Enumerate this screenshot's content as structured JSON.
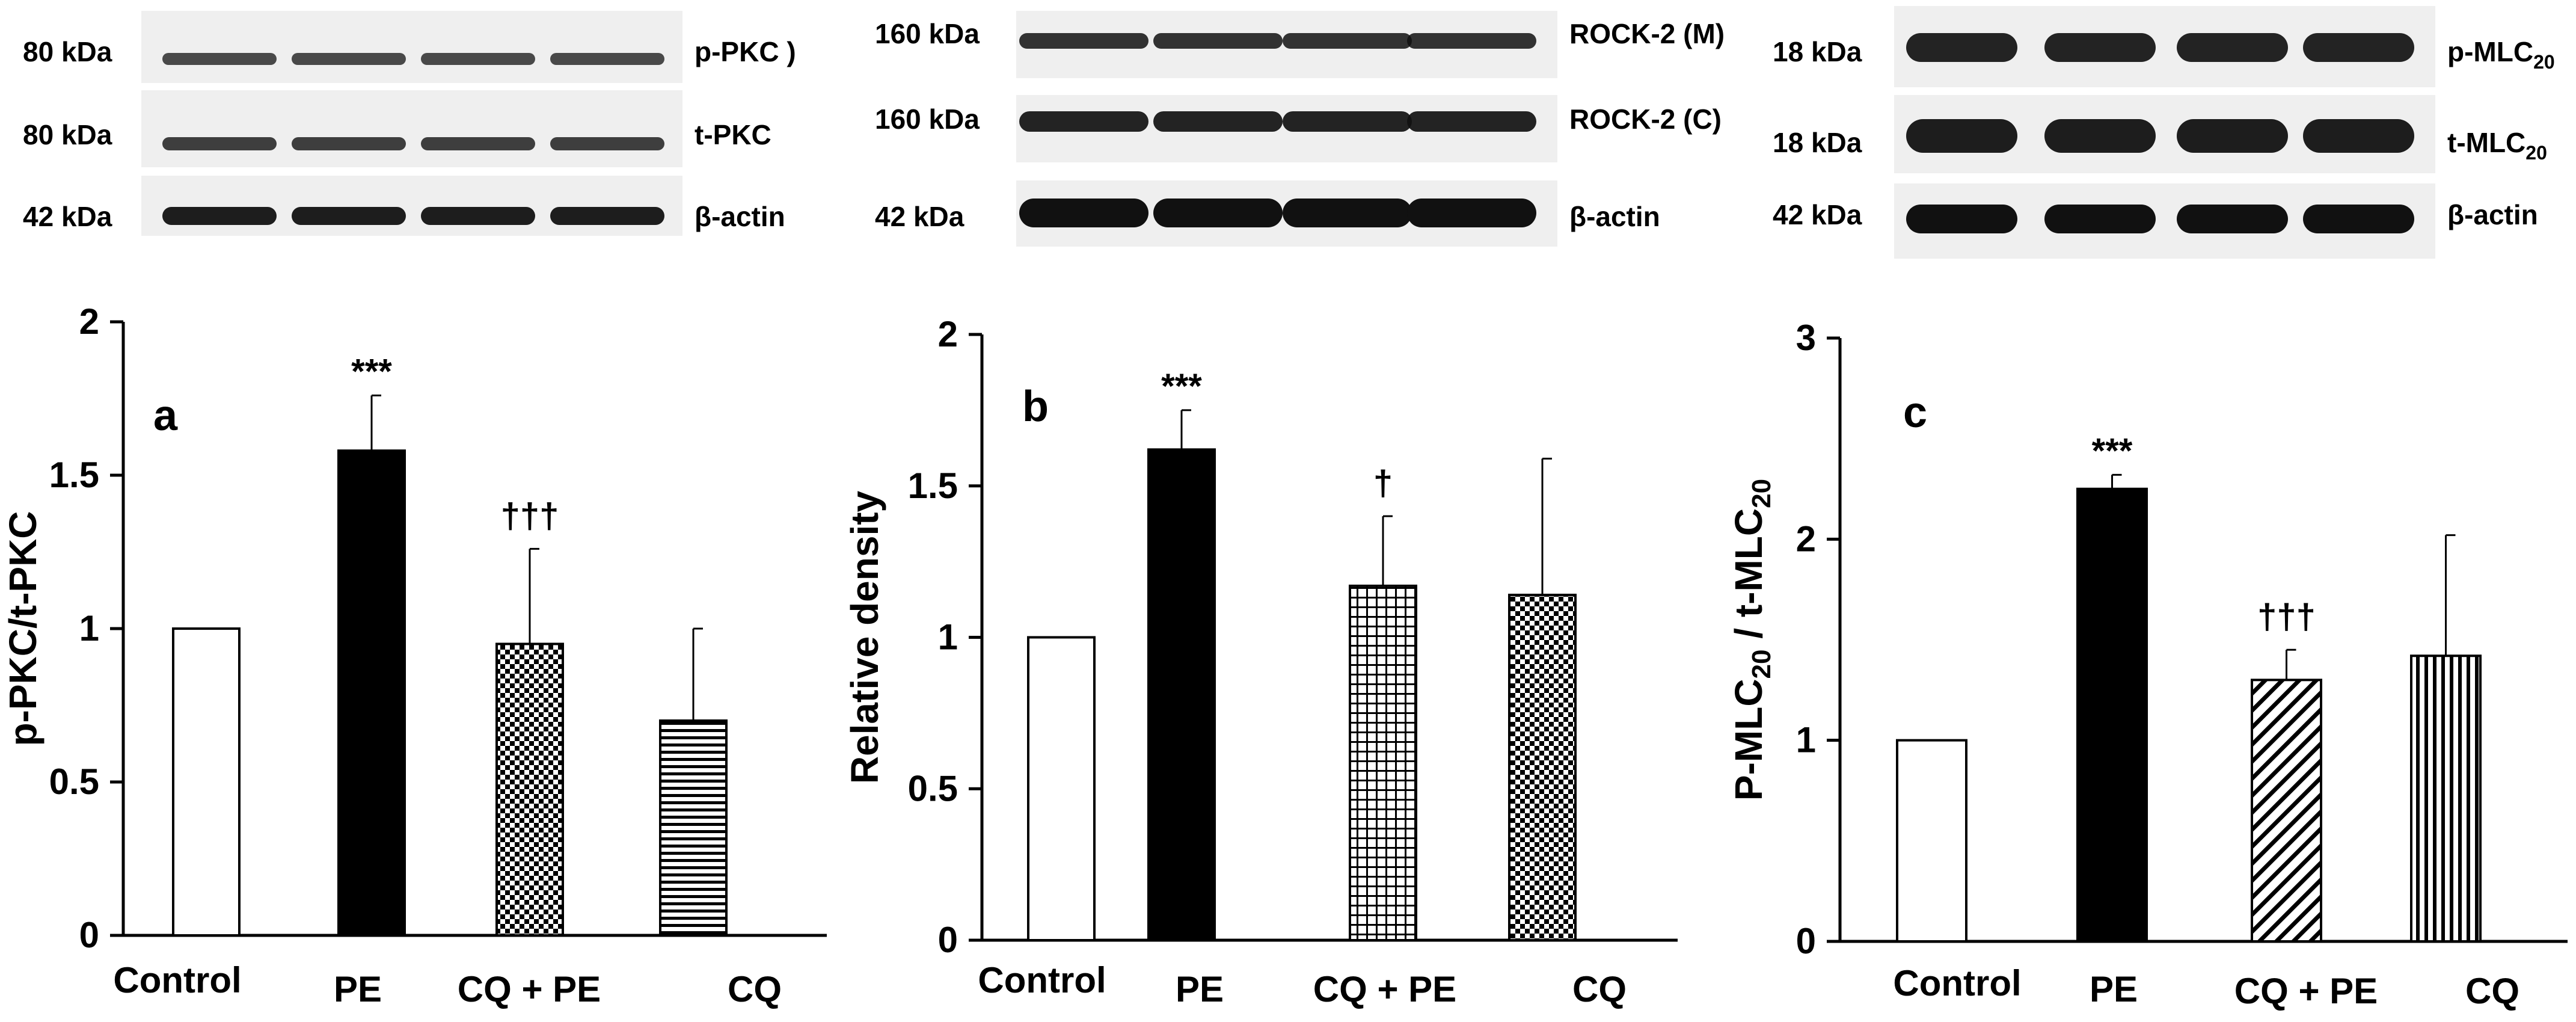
{
  "blots": [
    {
      "rows": [
        {
          "mw": "80 kDa",
          "label": "p-PKC )"
        },
        {
          "mw": "80 kDa",
          "label": "t-PKC"
        },
        {
          "mw": "42 kDa",
          "label": "β-actin"
        }
      ]
    },
    {
      "rows": [
        {
          "mw": "160 kDa",
          "label": "ROCK-2 (M)"
        },
        {
          "mw": "160 kDa",
          "label": "ROCK-2 (C)"
        },
        {
          "mw": "42 kDa",
          "label": "β-actin"
        }
      ]
    },
    {
      "rows": [
        {
          "mw": "18 kDa",
          "label": "p-MLC",
          "sub": "20"
        },
        {
          "mw": "18 kDa",
          "label": "t-MLC",
          "sub": "20"
        },
        {
          "mw": "42 kDa",
          "label": "β-actin"
        }
      ]
    }
  ],
  "chart_data": [
    {
      "type": "bar",
      "panel": "a",
      "categories": [
        "Control",
        "PE",
        "CQ + PE",
        "CQ"
      ],
      "values": [
        1.0,
        1.58,
        0.95,
        0.7
      ],
      "errors": [
        0,
        0.18,
        0.31,
        0.3
      ],
      "annotations": [
        "",
        "***",
        "†††",
        ""
      ],
      "patterns": [
        "open",
        "solid",
        "checker",
        "hlines"
      ],
      "ylabel": "p-PKC/t-PKC",
      "ylim": [
        0,
        2
      ],
      "yticks": [
        "0",
        "0.5",
        "1",
        "1.5",
        "2"
      ],
      "ytick_values": [
        0,
        0.5,
        1,
        1.5,
        2
      ]
    },
    {
      "type": "bar",
      "panel": "b",
      "categories": [
        "Control",
        "PE",
        "CQ + PE",
        "CQ"
      ],
      "values": [
        1.0,
        1.62,
        1.17,
        1.14
      ],
      "errors": [
        0,
        0.13,
        0.23,
        0.45
      ],
      "annotations": [
        "",
        "***",
        "†",
        ""
      ],
      "patterns": [
        "open",
        "solid",
        "grid",
        "checker"
      ],
      "ylabel": "Relative density",
      "ylim": [
        0,
        2
      ],
      "yticks": [
        "0",
        "0.5",
        "1",
        "1.5",
        "2"
      ],
      "ytick_values": [
        0,
        0.5,
        1,
        1.5,
        2
      ]
    },
    {
      "type": "bar",
      "panel": "c",
      "categories": [
        "Control",
        "PE",
        "CQ + PE",
        "CQ"
      ],
      "values": [
        1.0,
        2.25,
        1.3,
        1.42
      ],
      "errors": [
        0,
        0.07,
        0.15,
        0.6
      ],
      "annotations": [
        "",
        "***",
        "†††",
        ""
      ],
      "patterns": [
        "open",
        "solid",
        "diag",
        "vlines"
      ],
      "ylabel": "P-MLC20 / t-MLC20",
      "ylabel_parts": [
        "P-MLC",
        "20",
        " / t-MLC",
        "20"
      ],
      "ylim": [
        0,
        3
      ],
      "yticks": [
        "0",
        "1",
        "2",
        "3"
      ],
      "ytick_values": [
        0,
        1,
        2,
        3
      ]
    }
  ],
  "colors": {
    "axis": "#000000",
    "solid_bar": "#000000",
    "open_bar": "#ffffff"
  }
}
